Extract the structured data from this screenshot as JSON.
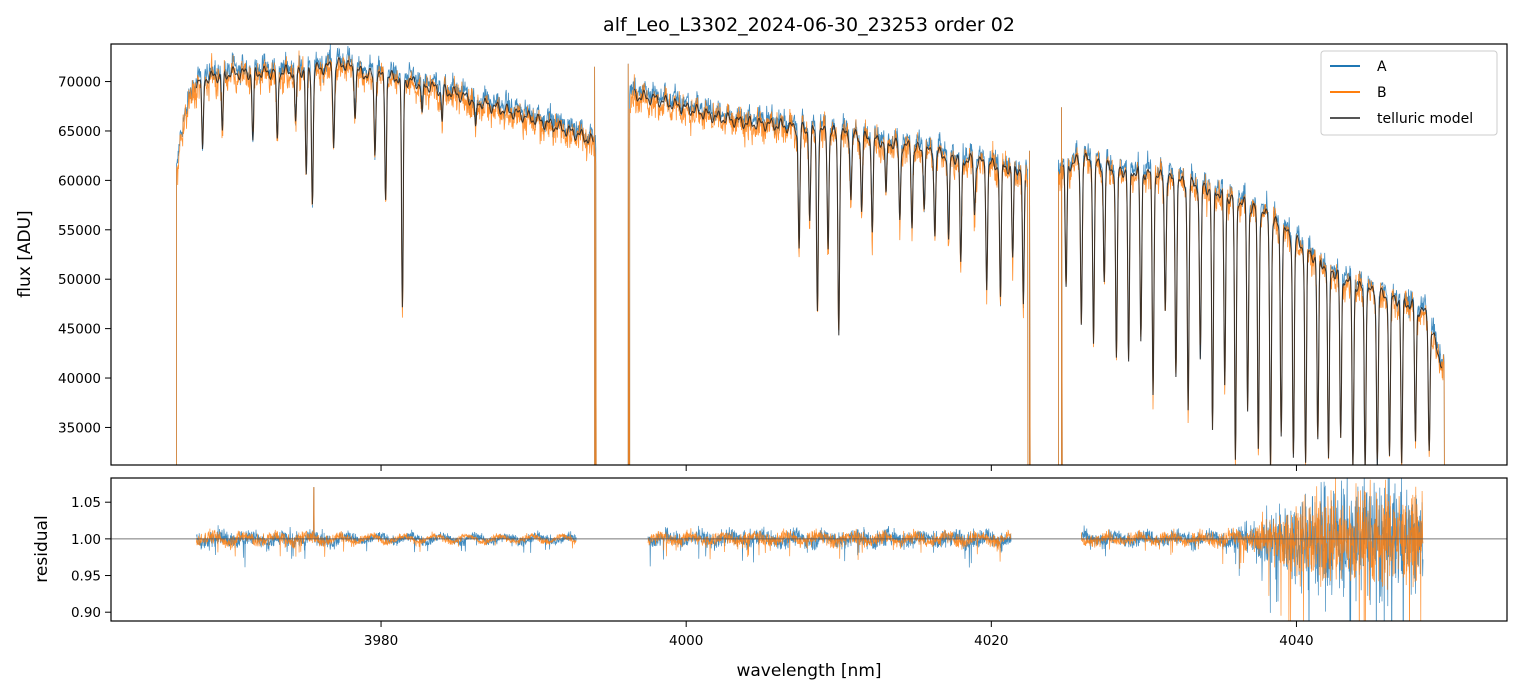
{
  "chart_data": [
    {
      "type": "line",
      "panel": "flux",
      "title": "alf_Leo_L3302_2024-06-30_23253  order 02",
      "xlabel": "",
      "ylabel": "flux [ADU]",
      "xlim": [
        3962.3,
        4053.8
      ],
      "ylim": [
        31200,
        73800
      ],
      "yticks": [
        35000,
        40000,
        45000,
        50000,
        55000,
        60000,
        65000,
        70000
      ],
      "ytick_labels": [
        "35000",
        "40000",
        "45000",
        "50000",
        "55000",
        "60000",
        "65000",
        "70000"
      ],
      "xticks": [
        3980,
        4000,
        4020,
        4040
      ],
      "legend": {
        "placement": "top-right",
        "entries": [
          "A",
          "B",
          "telluric model"
        ]
      },
      "segments": [
        {
          "x_range": [
            3966.6,
            3994.1
          ],
          "continuum": [
            [
              3966.6,
              61000
            ],
            [
              3967.2,
              67000
            ],
            [
              3968.0,
              70200
            ],
            [
              3970.0,
              70800
            ],
            [
              3972.0,
              70900
            ],
            [
              3974.0,
              71000
            ],
            [
              3976.0,
              71300
            ],
            [
              3977.5,
              71800
            ],
            [
              3979.0,
              70700
            ],
            [
              3981.0,
              70400
            ],
            [
              3983.0,
              69600
            ],
            [
              3985.0,
              68700
            ],
            [
              3987.0,
              67600
            ],
            [
              3989.0,
              66700
            ],
            [
              3991.0,
              65700
            ],
            [
              3993.0,
              64600
            ],
            [
              3994.1,
              63800
            ]
          ],
          "absorption_lines": [
            [
              3968.3,
              62600
            ],
            [
              3969.6,
              64800
            ],
            [
              3971.6,
              64000
            ],
            [
              3973.2,
              63800
            ],
            [
              3974.4,
              65500
            ],
            [
              3975.1,
              60400
            ],
            [
              3975.5,
              57800
            ],
            [
              3976.9,
              63600
            ],
            [
              3978.3,
              66800
            ],
            [
              3979.6,
              62800
            ],
            [
              3980.3,
              58700
            ],
            [
              3981.4,
              46900
            ],
            [
              3982.7,
              66300
            ],
            [
              3984.0,
              65900
            ],
            [
              3986.2,
              64800
            ]
          ]
        },
        {
          "x_range": [
            3996.3,
            4022.4
          ],
          "continuum": [
            [
              3996.3,
              68700
            ],
            [
              3998.0,
              68200
            ],
            [
              4000.0,
              67300
            ],
            [
              4002.0,
              66400
            ],
            [
              4004.0,
              65800
            ],
            [
              4006.0,
              65600
            ],
            [
              4008.0,
              65100
            ],
            [
              4010.0,
              64800
            ],
            [
              4012.0,
              64200
            ],
            [
              4014.0,
              63600
            ],
            [
              4016.0,
              62900
            ],
            [
              4018.0,
              62200
            ],
            [
              4020.0,
              61600
            ],
            [
              4022.4,
              61000
            ]
          ],
          "absorption_lines": [
            [
              4007.4,
              53100
            ],
            [
              4008.1,
              56200
            ],
            [
              4008.6,
              47300
            ],
            [
              4009.3,
              53500
            ],
            [
              4010.0,
              44600
            ],
            [
              4010.8,
              58100
            ],
            [
              4011.5,
              57200
            ],
            [
              4012.2,
              55000
            ],
            [
              4013.1,
              58200
            ],
            [
              4014.0,
              55800
            ],
            [
              4014.8,
              55600
            ],
            [
              4015.6,
              57700
            ],
            [
              4016.3,
              54500
            ],
            [
              4017.2,
              53400
            ],
            [
              4018.0,
              51300
            ],
            [
              4018.9,
              56600
            ],
            [
              4019.7,
              49500
            ],
            [
              4020.6,
              48000
            ],
            [
              4021.4,
              52000
            ],
            [
              4022.1,
              46800
            ]
          ]
        },
        {
          "x_range": [
            4024.4,
            4049.7
          ],
          "continuum": [
            [
              4024.4,
              60800
            ],
            [
              4025.0,
              61500
            ],
            [
              4026.0,
              62200
            ],
            [
              4028.0,
              61100
            ],
            [
              4030.0,
              60800
            ],
            [
              4032.0,
              60000
            ],
            [
              4034.0,
              59300
            ],
            [
              4036.0,
              58100
            ],
            [
              4038.0,
              56500
            ],
            [
              4040.0,
              53800
            ],
            [
              4042.0,
              51200
            ],
            [
              4044.0,
              49200
            ],
            [
              4046.0,
              48200
            ],
            [
              4047.0,
              47800
            ],
            [
              4048.5,
              46500
            ],
            [
              4049.7,
              40500
            ]
          ],
          "absorption_lines": [
            [
              4024.9,
              49000
            ],
            [
              4025.9,
              45600
            ],
            [
              4026.7,
              43600
            ],
            [
              4027.4,
              49900
            ],
            [
              4028.2,
              41600
            ],
            [
              4029.0,
              41200
            ],
            [
              4029.8,
              43700
            ],
            [
              4030.6,
              38500
            ],
            [
              4031.4,
              47000
            ],
            [
              4032.1,
              40800
            ],
            [
              4032.9,
              37000
            ],
            [
              4033.7,
              41500
            ],
            [
              4034.5,
              34300
            ],
            [
              4035.3,
              39200
            ],
            [
              4036.0,
              31200
            ],
            [
              4036.8,
              36800
            ],
            [
              4037.5,
              32800
            ],
            [
              4038.3,
              31200
            ],
            [
              4039.0,
              34600
            ],
            [
              4039.8,
              32000
            ],
            [
              4040.6,
              31200
            ],
            [
              4041.4,
              33600
            ],
            [
              4042.1,
              31200
            ],
            [
              4042.9,
              33600
            ],
            [
              4043.7,
              31200
            ],
            [
              4044.5,
              31200
            ],
            [
              4045.3,
              31200
            ],
            [
              4046.1,
              32000
            ],
            [
              4046.9,
              31200
            ],
            [
              4047.8,
              33600
            ],
            [
              4048.7,
              33000
            ]
          ]
        }
      ],
      "spikes": [
        [
          3994.0,
          71500
        ],
        [
          3996.2,
          71800
        ],
        [
          4022.5,
          63000
        ],
        [
          4024.6,
          67400
        ]
      ],
      "series": [
        {
          "name": "A",
          "color": "#1f77b4",
          "noise_adu": 900,
          "offset_adu": 500
        },
        {
          "name": "B",
          "color": "#ff7f0e",
          "noise_adu": 1300,
          "offset_adu": -300
        },
        {
          "name": "telluric model",
          "color": "#555555",
          "noise_adu": 0,
          "offset_adu": 0
        }
      ]
    },
    {
      "type": "line",
      "panel": "residual",
      "title": "",
      "xlabel": "wavelength [nm]",
      "ylabel": "residual",
      "xlim": [
        3962.3,
        4053.8
      ],
      "ylim": [
        0.888,
        1.083
      ],
      "yticks": [
        0.9,
        0.95,
        1.0,
        1.05
      ],
      "ytick_labels": [
        "0.90",
        "0.95",
        "1.00",
        "1.05"
      ],
      "xticks": [
        3980,
        4000,
        4020,
        4040
      ],
      "xtick_labels": [
        "3980",
        "4000",
        "4020",
        "4040"
      ],
      "reference_line": 1.0,
      "segments": [
        {
          "x_range": [
            3967.9,
            3992.8
          ],
          "noise": [
            [
              3967.9,
              0.01
            ],
            [
              3976.0,
              0.009
            ],
            [
              3979.0,
              0.005
            ],
            [
              3992.8,
              0.005
            ]
          ],
          "spike": [
            3975.6,
            1.07
          ]
        },
        {
          "x_range": [
            3997.5,
            4021.3
          ],
          "noise": [
            [
              3997.5,
              0.009
            ],
            [
              4010.0,
              0.01
            ],
            [
              4021.3,
              0.01
            ]
          ]
        },
        {
          "x_range": [
            4025.9,
            4048.3
          ],
          "noise": [
            [
              4025.9,
              0.008
            ],
            [
              4034.0,
              0.009
            ],
            [
              4037.0,
              0.016
            ],
            [
              4039.0,
              0.04
            ],
            [
              4042.0,
              0.07
            ],
            [
              4046.0,
              0.07
            ],
            [
              4048.3,
              0.05
            ]
          ]
        }
      ],
      "series": [
        {
          "name": "A",
          "color": "#1f77b4"
        },
        {
          "name": "B",
          "color": "#ff7f0e"
        }
      ]
    }
  ]
}
